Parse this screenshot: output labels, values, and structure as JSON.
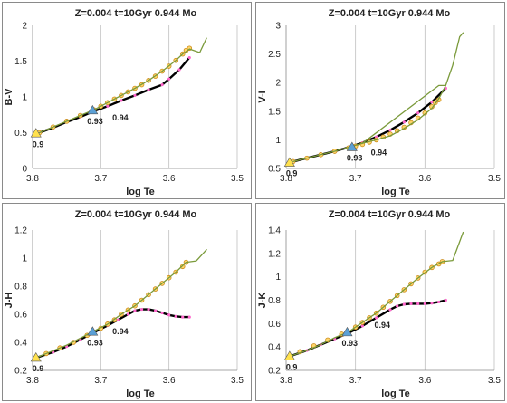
{
  "chart_data": [
    {
      "type": "line",
      "title": "Z=0.004  t=10Gyr  0.944 Mo",
      "xlabel": "log Te",
      "ylabel": "B-V",
      "xlim": [
        3.8,
        3.5
      ],
      "ylim": [
        0,
        2
      ],
      "xticks": [
        "3.8",
        "3.7",
        "3.6",
        "3.5"
      ],
      "yticks": [
        "0",
        "0.5",
        "1",
        "1.5",
        "2"
      ],
      "grid": "vertical",
      "series": [
        {
          "color": "#000000",
          "style": "line",
          "x": [
            3.79,
            3.77,
            3.75,
            3.73,
            3.71,
            3.69,
            3.67,
            3.65,
            3.63,
            3.61,
            3.6,
            3.585,
            3.57
          ],
          "y": [
            0.5,
            0.57,
            0.65,
            0.72,
            0.8,
            0.87,
            0.95,
            1.02,
            1.1,
            1.17,
            1.25,
            1.38,
            1.55
          ]
        },
        {
          "color": "#ff66cc",
          "style": "markers",
          "x": [
            3.79,
            3.77,
            3.75,
            3.73,
            3.71,
            3.69,
            3.67,
            3.65,
            3.63,
            3.61,
            3.6,
            3.585,
            3.57
          ],
          "y": [
            0.5,
            0.57,
            0.65,
            0.72,
            0.8,
            0.87,
            0.95,
            1.02,
            1.1,
            1.17,
            1.25,
            1.38,
            1.55
          ]
        },
        {
          "color": "#e8a33d",
          "style": "markers",
          "x": [
            3.79,
            3.77,
            3.75,
            3.73,
            3.71,
            3.7,
            3.69,
            3.68,
            3.67,
            3.66,
            3.65,
            3.64,
            3.63,
            3.62,
            3.61,
            3.6,
            3.59,
            3.58,
            3.575,
            3.57
          ],
          "y": [
            0.5,
            0.58,
            0.66,
            0.74,
            0.82,
            0.87,
            0.92,
            0.97,
            1.02,
            1.07,
            1.12,
            1.17,
            1.23,
            1.29,
            1.36,
            1.43,
            1.51,
            1.6,
            1.65,
            1.68
          ]
        },
        {
          "color": "#7a9a3a",
          "style": "line",
          "x": [
            3.79,
            3.77,
            3.75,
            3.73,
            3.71,
            3.69,
            3.67,
            3.65,
            3.63,
            3.61,
            3.59,
            3.58,
            3.57,
            3.555,
            3.545
          ],
          "y": [
            0.5,
            0.58,
            0.66,
            0.74,
            0.82,
            0.92,
            1.02,
            1.12,
            1.23,
            1.36,
            1.51,
            1.6,
            1.67,
            1.62,
            1.82
          ]
        }
      ],
      "markers": [
        {
          "label": "0.9",
          "x": 3.795,
          "y": 0.49,
          "color": "#ffe14d"
        },
        {
          "label": "0.93",
          "x": 3.712,
          "y": 0.81,
          "color": "#5aa0d6"
        },
        {
          "label": "0.94",
          "x": 3.675,
          "y": 0.86,
          "color": "#ffffff"
        }
      ]
    },
    {
      "type": "line",
      "title": "Z=0.004  t=10Gyr  0.944 Mo",
      "xlabel": "log Te",
      "ylabel": "V-I",
      "xlim": [
        3.8,
        3.5
      ],
      "ylim": [
        0.5,
        3
      ],
      "xticks": [
        "3.8",
        "3.7",
        "3.6",
        "3.5"
      ],
      "yticks": [
        "0.5",
        "1",
        "1.5",
        "2",
        "2.5",
        "3"
      ],
      "grid": "vertical",
      "series": [
        {
          "color": "#000000",
          "style": "line",
          "x": [
            3.79,
            3.77,
            3.75,
            3.73,
            3.71,
            3.69,
            3.67,
            3.65,
            3.63,
            3.61,
            3.59,
            3.57
          ],
          "y": [
            0.62,
            0.68,
            0.74,
            0.8,
            0.87,
            0.95,
            1.05,
            1.17,
            1.31,
            1.47,
            1.66,
            1.9
          ]
        },
        {
          "color": "#ff66cc",
          "style": "markers",
          "x": [
            3.79,
            3.77,
            3.75,
            3.73,
            3.71,
            3.69,
            3.67,
            3.65,
            3.63,
            3.61,
            3.59,
            3.57
          ],
          "y": [
            0.62,
            0.68,
            0.74,
            0.8,
            0.87,
            0.95,
            1.05,
            1.17,
            1.31,
            1.47,
            1.66,
            1.9
          ]
        },
        {
          "color": "#e8a33d",
          "style": "markers",
          "x": [
            3.79,
            3.77,
            3.75,
            3.73,
            3.71,
            3.7,
            3.69,
            3.68,
            3.67,
            3.66,
            3.65,
            3.64,
            3.63,
            3.62,
            3.61,
            3.6,
            3.59,
            3.585,
            3.58
          ],
          "y": [
            0.62,
            0.68,
            0.74,
            0.8,
            0.86,
            0.89,
            0.92,
            0.96,
            1.0,
            1.05,
            1.1,
            1.16,
            1.22,
            1.3,
            1.38,
            1.47,
            1.58,
            1.65,
            1.7
          ]
        },
        {
          "color": "#7a9a3a",
          "style": "line",
          "x": [
            3.79,
            3.77,
            3.75,
            3.73,
            3.71,
            3.69,
            3.67,
            3.65,
            3.63,
            3.61,
            3.59,
            3.58,
            3.57,
            3.56,
            3.55,
            3.545
          ],
          "y": [
            0.62,
            0.68,
            0.74,
            0.8,
            0.87,
            0.94,
            1.0,
            1.07,
            1.2,
            1.35,
            1.55,
            1.72,
            1.95,
            2.3,
            2.8,
            2.87
          ]
        },
        {
          "color": "#7a9a3a",
          "style": "line",
          "x": [
            3.69,
            3.58,
            3.57
          ],
          "y": [
            0.94,
            1.95,
            1.95
          ]
        }
      ],
      "markers": [
        {
          "label": "0.9",
          "x": 3.795,
          "y": 0.6,
          "color": "#ffe14d"
        },
        {
          "label": "0.93",
          "x": 3.705,
          "y": 0.87,
          "color": "#5aa0d6"
        },
        {
          "label": "0.94",
          "x": 3.67,
          "y": 0.97,
          "color": "#ffffff"
        }
      ]
    },
    {
      "type": "line",
      "title": "Z=0.004  t=10Gyr  0.944 Mo",
      "xlabel": "log Te",
      "ylabel": "J-H",
      "xlim": [
        3.8,
        3.5
      ],
      "ylim": [
        0.2,
        1.2
      ],
      "xticks": [
        "3.8",
        "3.7",
        "3.6",
        "3.5"
      ],
      "yticks": [
        "0.2",
        "0.4",
        "0.6",
        "0.8",
        "1",
        "1.2"
      ],
      "grid": "vertical",
      "series": [
        {
          "color": "#000000",
          "style": "line",
          "x": [
            3.795,
            3.77,
            3.75,
            3.73,
            3.71,
            3.69,
            3.675,
            3.66,
            3.65,
            3.64,
            3.63,
            3.62,
            3.61,
            3.6,
            3.59,
            3.58,
            3.57
          ],
          "y": [
            0.29,
            0.33,
            0.37,
            0.42,
            0.47,
            0.52,
            0.56,
            0.6,
            0.625,
            0.635,
            0.635,
            0.625,
            0.61,
            0.595,
            0.585,
            0.58,
            0.58
          ]
        },
        {
          "color": "#ff66cc",
          "style": "markers",
          "x": [
            3.795,
            3.77,
            3.75,
            3.73,
            3.71,
            3.69,
            3.675,
            3.66,
            3.65,
            3.64,
            3.63,
            3.62,
            3.61,
            3.6,
            3.59,
            3.58,
            3.57
          ],
          "y": [
            0.29,
            0.33,
            0.37,
            0.42,
            0.47,
            0.52,
            0.56,
            0.6,
            0.625,
            0.635,
            0.635,
            0.625,
            0.61,
            0.595,
            0.585,
            0.58,
            0.58
          ]
        },
        {
          "color": "#e8a33d",
          "style": "markers",
          "x": [
            3.795,
            3.78,
            3.76,
            3.74,
            3.72,
            3.7,
            3.69,
            3.68,
            3.67,
            3.66,
            3.65,
            3.64,
            3.63,
            3.62,
            3.61,
            3.6,
            3.59,
            3.58,
            3.575
          ],
          "y": [
            0.29,
            0.32,
            0.36,
            0.4,
            0.45,
            0.5,
            0.53,
            0.56,
            0.6,
            0.63,
            0.66,
            0.7,
            0.74,
            0.78,
            0.82,
            0.86,
            0.9,
            0.94,
            0.97
          ]
        },
        {
          "color": "#7a9a3a",
          "style": "line",
          "x": [
            3.795,
            3.77,
            3.75,
            3.73,
            3.71,
            3.69,
            3.67,
            3.65,
            3.63,
            3.61,
            3.59,
            3.575,
            3.56,
            3.545
          ],
          "y": [
            0.29,
            0.34,
            0.38,
            0.43,
            0.48,
            0.53,
            0.6,
            0.66,
            0.74,
            0.82,
            0.9,
            0.97,
            0.98,
            1.06
          ]
        }
      ],
      "markers": [
        {
          "label": "0.9",
          "x": 3.795,
          "y": 0.29,
          "color": "#ffe14d"
        },
        {
          "label": "0.93",
          "x": 3.712,
          "y": 0.475,
          "color": "#5aa0d6"
        },
        {
          "label": "0.94",
          "x": 3.675,
          "y": 0.555,
          "color": "#ffffff"
        }
      ]
    },
    {
      "type": "line",
      "title": "Z=0.004  t=10Gyr  0.944 Mo",
      "xlabel": "log Te",
      "ylabel": "J-K",
      "xlim": [
        3.8,
        3.5
      ],
      "ylim": [
        0.2,
        1.4
      ],
      "xticks": [
        "3.8",
        "3.7",
        "3.6",
        "3.5"
      ],
      "yticks": [
        "0.2",
        "0.4",
        "0.6",
        "0.8",
        "1",
        "1.2",
        "1.4"
      ],
      "grid": "vertical",
      "series": [
        {
          "color": "#000000",
          "style": "line",
          "x": [
            3.795,
            3.77,
            3.75,
            3.73,
            3.71,
            3.69,
            3.67,
            3.65,
            3.64,
            3.63,
            3.62,
            3.61,
            3.6,
            3.59,
            3.58,
            3.57
          ],
          "y": [
            0.32,
            0.37,
            0.42,
            0.47,
            0.52,
            0.58,
            0.65,
            0.72,
            0.75,
            0.765,
            0.77,
            0.77,
            0.77,
            0.775,
            0.785,
            0.8
          ]
        },
        {
          "color": "#ff66cc",
          "style": "markers",
          "x": [
            3.795,
            3.77,
            3.75,
            3.73,
            3.71,
            3.69,
            3.67,
            3.65,
            3.64,
            3.63,
            3.62,
            3.61,
            3.6,
            3.59,
            3.58,
            3.57
          ],
          "y": [
            0.32,
            0.37,
            0.42,
            0.47,
            0.52,
            0.58,
            0.65,
            0.72,
            0.75,
            0.765,
            0.77,
            0.77,
            0.77,
            0.775,
            0.785,
            0.8
          ]
        },
        {
          "color": "#e8a33d",
          "style": "markers",
          "x": [
            3.795,
            3.78,
            3.76,
            3.74,
            3.72,
            3.7,
            3.69,
            3.68,
            3.67,
            3.66,
            3.65,
            3.64,
            3.63,
            3.62,
            3.61,
            3.6,
            3.59,
            3.58,
            3.575
          ],
          "y": [
            0.32,
            0.36,
            0.41,
            0.46,
            0.51,
            0.57,
            0.61,
            0.65,
            0.69,
            0.74,
            0.79,
            0.84,
            0.89,
            0.94,
            0.99,
            1.04,
            1.08,
            1.11,
            1.13
          ]
        },
        {
          "color": "#7a9a3a",
          "style": "line",
          "x": [
            3.795,
            3.77,
            3.75,
            3.73,
            3.71,
            3.69,
            3.67,
            3.65,
            3.63,
            3.61,
            3.59,
            3.575,
            3.56,
            3.545
          ],
          "y": [
            0.32,
            0.37,
            0.42,
            0.48,
            0.53,
            0.61,
            0.69,
            0.79,
            0.89,
            0.99,
            1.08,
            1.13,
            1.14,
            1.38
          ]
        }
      ],
      "markers": [
        {
          "label": "0.9",
          "x": 3.795,
          "y": 0.32,
          "color": "#ffe14d"
        },
        {
          "label": "0.93",
          "x": 3.712,
          "y": 0.525,
          "color": "#5aa0d6"
        },
        {
          "label": "0.94",
          "x": 3.665,
          "y": 0.68,
          "color": "#ffffff"
        }
      ]
    }
  ]
}
